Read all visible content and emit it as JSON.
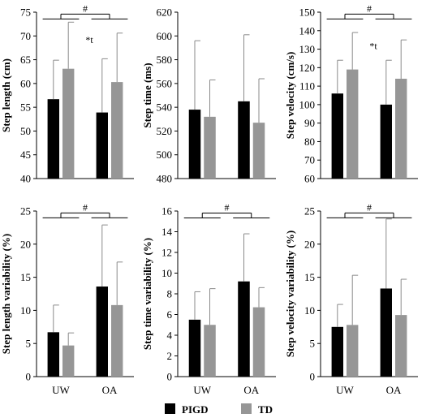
{
  "colors": {
    "pigd": "#000000",
    "td": "#969696"
  },
  "legend": [
    {
      "label": "PIGD",
      "color": "#000000"
    },
    {
      "label": "TD",
      "color": "#969696"
    }
  ],
  "chart_data": [
    {
      "type": "bar",
      "ylabel": "Step length (cm)",
      "categories": [
        "UW",
        "OA"
      ],
      "show_xticklabels": false,
      "ylim": [
        40,
        75
      ],
      "yticks": [
        40,
        45,
        50,
        55,
        60,
        65,
        70,
        75
      ],
      "series": [
        {
          "name": "PIGD",
          "values": [
            56.7,
            53.9
          ],
          "errors": [
            8.2,
            11.3
          ]
        },
        {
          "name": "TD",
          "values": [
            63.1,
            60.3
          ],
          "errors": [
            9.8,
            10.3
          ]
        }
      ],
      "annotations": [
        {
          "text": "#",
          "type": "group-bracket"
        },
        {
          "text": "*t",
          "type": "marker"
        }
      ]
    },
    {
      "type": "bar",
      "ylabel": "Step time (ms)",
      "categories": [
        "UW",
        "OA"
      ],
      "show_xticklabels": false,
      "ylim": [
        480,
        620
      ],
      "yticks": [
        480,
        500,
        520,
        540,
        560,
        580,
        600,
        620
      ],
      "series": [
        {
          "name": "PIGD",
          "values": [
            538,
            545
          ],
          "errors": [
            58,
            56
          ]
        },
        {
          "name": "TD",
          "values": [
            532,
            527
          ],
          "errors": [
            31,
            37
          ]
        }
      ],
      "annotations": []
    },
    {
      "type": "bar",
      "ylabel": "Step velocity (cm/s)",
      "categories": [
        "UW",
        "OA"
      ],
      "show_xticklabels": false,
      "ylim": [
        60,
        150
      ],
      "yticks": [
        60,
        70,
        80,
        90,
        100,
        110,
        120,
        130,
        140,
        150
      ],
      "series": [
        {
          "name": "PIGD",
          "values": [
            106,
            100
          ],
          "errors": [
            18,
            24
          ]
        },
        {
          "name": "TD",
          "values": [
            119,
            114
          ],
          "errors": [
            20,
            21
          ]
        }
      ],
      "annotations": [
        {
          "text": "#",
          "type": "group-bracket"
        },
        {
          "text": "*t",
          "type": "marker"
        }
      ]
    },
    {
      "type": "bar",
      "ylabel": "Step length variability (%)",
      "categories": [
        "UW",
        "OA"
      ],
      "show_xticklabels": true,
      "ylim": [
        0,
        25
      ],
      "yticks": [
        0,
        5,
        10,
        15,
        20,
        25
      ],
      "series": [
        {
          "name": "PIGD",
          "values": [
            6.7,
            13.6
          ],
          "errors": [
            4.1,
            9.3
          ]
        },
        {
          "name": "TD",
          "values": [
            4.7,
            10.8
          ],
          "errors": [
            1.9,
            6.5
          ]
        }
      ],
      "annotations": [
        {
          "text": "#",
          "type": "group-bracket"
        }
      ]
    },
    {
      "type": "bar",
      "ylabel": "Step time variability (%)",
      "categories": [
        "UW",
        "OA"
      ],
      "show_xticklabels": true,
      "ylim": [
        0,
        16
      ],
      "yticks": [
        0,
        2,
        4,
        6,
        8,
        10,
        12,
        14,
        16
      ],
      "series": [
        {
          "name": "PIGD",
          "values": [
            5.5,
            9.2
          ],
          "errors": [
            2.7,
            4.6
          ]
        },
        {
          "name": "TD",
          "values": [
            5.0,
            6.7
          ],
          "errors": [
            3.5,
            1.9
          ]
        }
      ],
      "annotations": [
        {
          "text": "#",
          "type": "group-bracket"
        }
      ]
    },
    {
      "type": "bar",
      "ylabel": "Step velocity variability (%)",
      "categories": [
        "UW",
        "OA"
      ],
      "show_xticklabels": true,
      "ylim": [
        0,
        25
      ],
      "yticks": [
        0,
        5,
        10,
        15,
        20,
        25
      ],
      "series": [
        {
          "name": "PIGD",
          "values": [
            7.5,
            13.3
          ],
          "errors": [
            3.4,
            10.5
          ]
        },
        {
          "name": "TD",
          "values": [
            7.8,
            9.3
          ],
          "errors": [
            7.5,
            5.4
          ]
        }
      ],
      "annotations": [
        {
          "text": "#",
          "type": "group-bracket"
        }
      ]
    }
  ]
}
